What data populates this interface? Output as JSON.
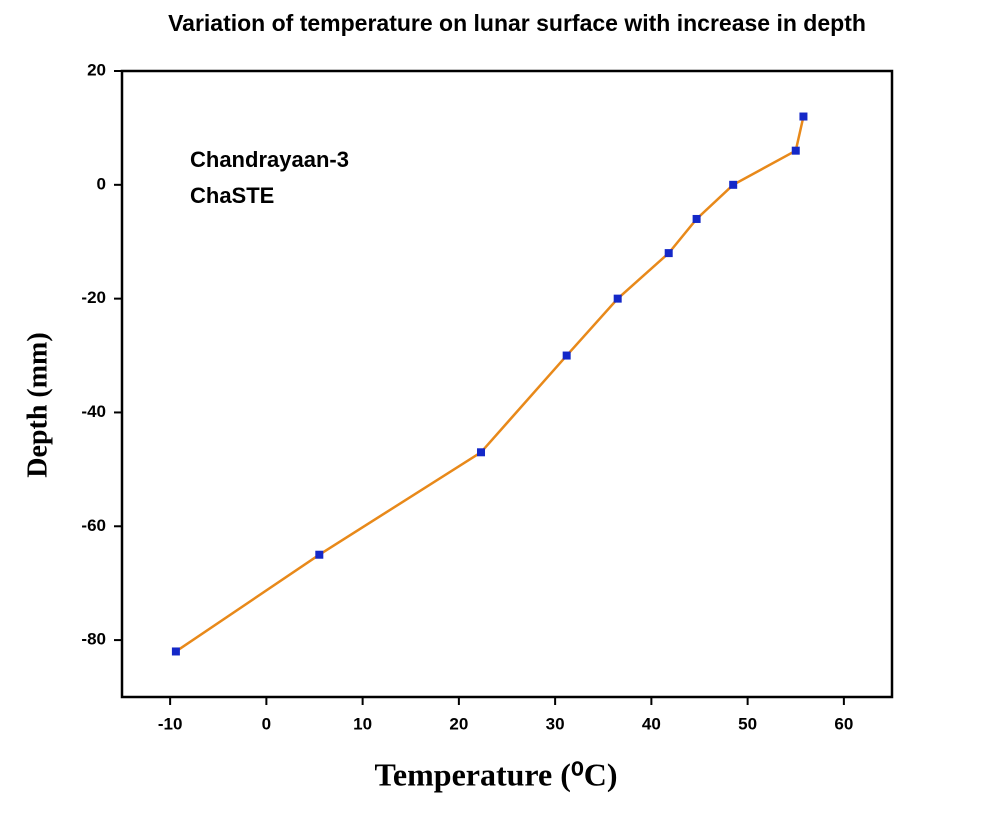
{
  "chart_data": {
    "type": "line",
    "title": "Variation of temperature on lunar surface with increase in depth",
    "x_label": "Temperature (⁰C)",
    "y_label": "Depth (mm)",
    "annotations": [
      "Chandrayaan-3",
      "ChaSTE"
    ],
    "x": [
      -9.4,
      5.5,
      22.3,
      31.2,
      36.5,
      41.8,
      44.7,
      48.5,
      55.0,
      55.8
    ],
    "series": [
      {
        "color": "#e8891a",
        "marker_color": "#1428c8",
        "values": [
          -82,
          -65,
          -47,
          -30,
          -20,
          -12,
          -6,
          0,
          6,
          12
        ]
      }
    ],
    "xlim": [
      -15,
      65
    ],
    "ylim": [
      -90,
      20
    ],
    "xticks": [
      -10,
      0,
      10,
      20,
      30,
      40,
      50,
      60
    ],
    "yticks": [
      -80,
      -60,
      -40,
      -20,
      0,
      20
    ]
  }
}
